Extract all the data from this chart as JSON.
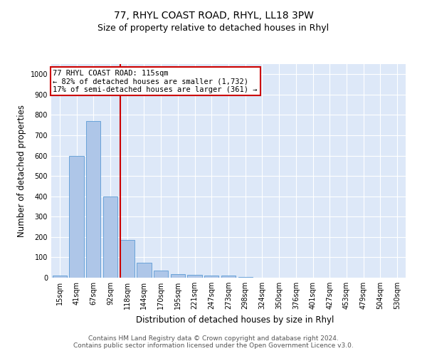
{
  "title": "77, RHYL COAST ROAD, RHYL, LL18 3PW",
  "subtitle": "Size of property relative to detached houses in Rhyl",
  "xlabel": "Distribution of detached houses by size in Rhyl",
  "ylabel": "Number of detached properties",
  "categories": [
    "15sqm",
    "41sqm",
    "67sqm",
    "92sqm",
    "118sqm",
    "144sqm",
    "170sqm",
    "195sqm",
    "221sqm",
    "247sqm",
    "273sqm",
    "298sqm",
    "324sqm",
    "350sqm",
    "376sqm",
    "401sqm",
    "427sqm",
    "453sqm",
    "479sqm",
    "504sqm",
    "530sqm"
  ],
  "values": [
    10,
    600,
    770,
    400,
    185,
    75,
    35,
    18,
    15,
    10,
    10,
    5,
    0,
    0,
    0,
    0,
    0,
    0,
    0,
    0,
    0
  ],
  "bar_color": "#aec6e8",
  "bar_edge_color": "#5b9bd5",
  "vline_color": "#cc0000",
  "vline_position": 3.57,
  "annotation_text": "77 RHYL COAST ROAD: 115sqm\n← 82% of detached houses are smaller (1,732)\n17% of semi-detached houses are larger (361) →",
  "annotation_box_color": "#cc0000",
  "ylim": [
    0,
    1050
  ],
  "yticks": [
    0,
    100,
    200,
    300,
    400,
    500,
    600,
    700,
    800,
    900,
    1000
  ],
  "footer_line1": "Contains HM Land Registry data © Crown copyright and database right 2024.",
  "footer_line2": "Contains public sector information licensed under the Open Government Licence v3.0.",
  "bg_color": "#ffffff",
  "plot_bg_color": "#dde8f8",
  "grid_color": "#ffffff",
  "title_fontsize": 10,
  "subtitle_fontsize": 9,
  "axis_label_fontsize": 8.5,
  "tick_fontsize": 7,
  "footer_fontsize": 6.5,
  "annotation_fontsize": 7.5
}
